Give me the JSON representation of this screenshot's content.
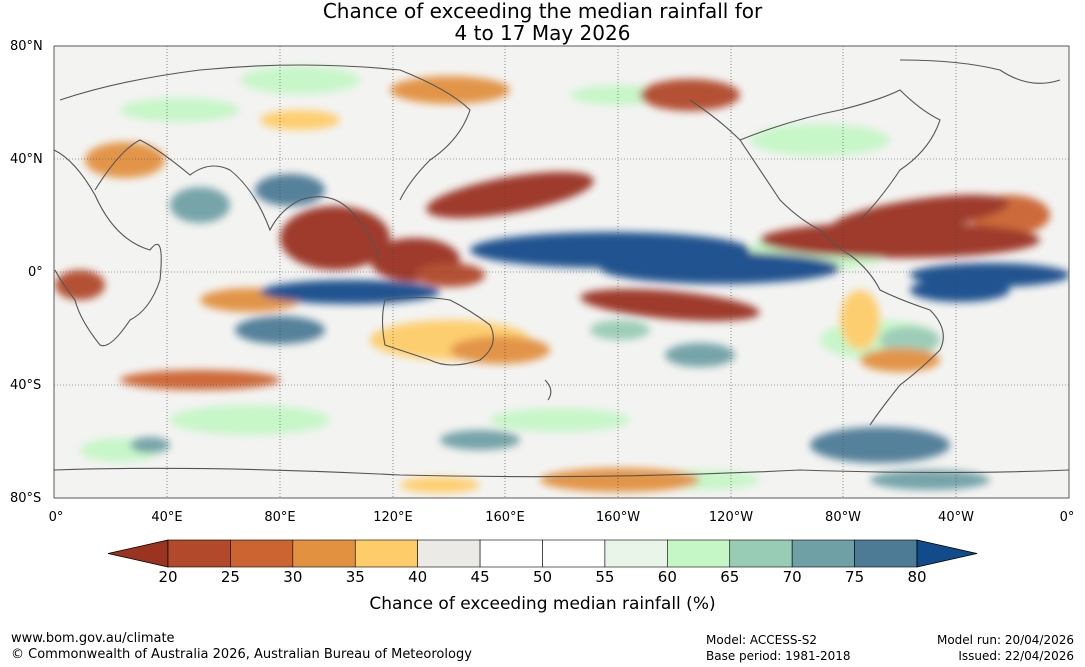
{
  "title": {
    "line1": "Chance of exceeding the median rainfall for",
    "line2": "4 to 17 May 2026"
  },
  "map": {
    "lat_labels": [
      "80°N",
      "40°N",
      "0°",
      "40°S",
      "80°S"
    ],
    "lon_labels": [
      "0°",
      "40°E",
      "80°E",
      "120°E",
      "160°E",
      "160°W",
      "120°W",
      "80°W",
      "40°W",
      "0°"
    ]
  },
  "colorbar": {
    "label": "Chance of exceeding median rainfall (%)",
    "ticks": [
      "20",
      "25",
      "30",
      "35",
      "40",
      "45",
      "50",
      "55",
      "60",
      "65",
      "70",
      "75",
      "80"
    ],
    "colors": [
      "#9a3320",
      "#b1492a",
      "#cc6432",
      "#e29140",
      "#fecd6a",
      "#ebeae6",
      "#ffffff",
      "#ffffff",
      "#e9f5e8",
      "#c5f7c6",
      "#99ccb5",
      "#6fa0a5",
      "#4d7b96",
      "#124b8b"
    ]
  },
  "footer": {
    "website": "www.bom.gov.au/climate",
    "copyright": "© Commonwealth of Australia 2026, Australian Bureau of Meteorology",
    "model": "Model: ACCESS-S2",
    "base_period": "Base period: 1981-2018",
    "model_run": "Model run: 20/04/2026",
    "issued": "Issued: 22/04/2026"
  }
}
